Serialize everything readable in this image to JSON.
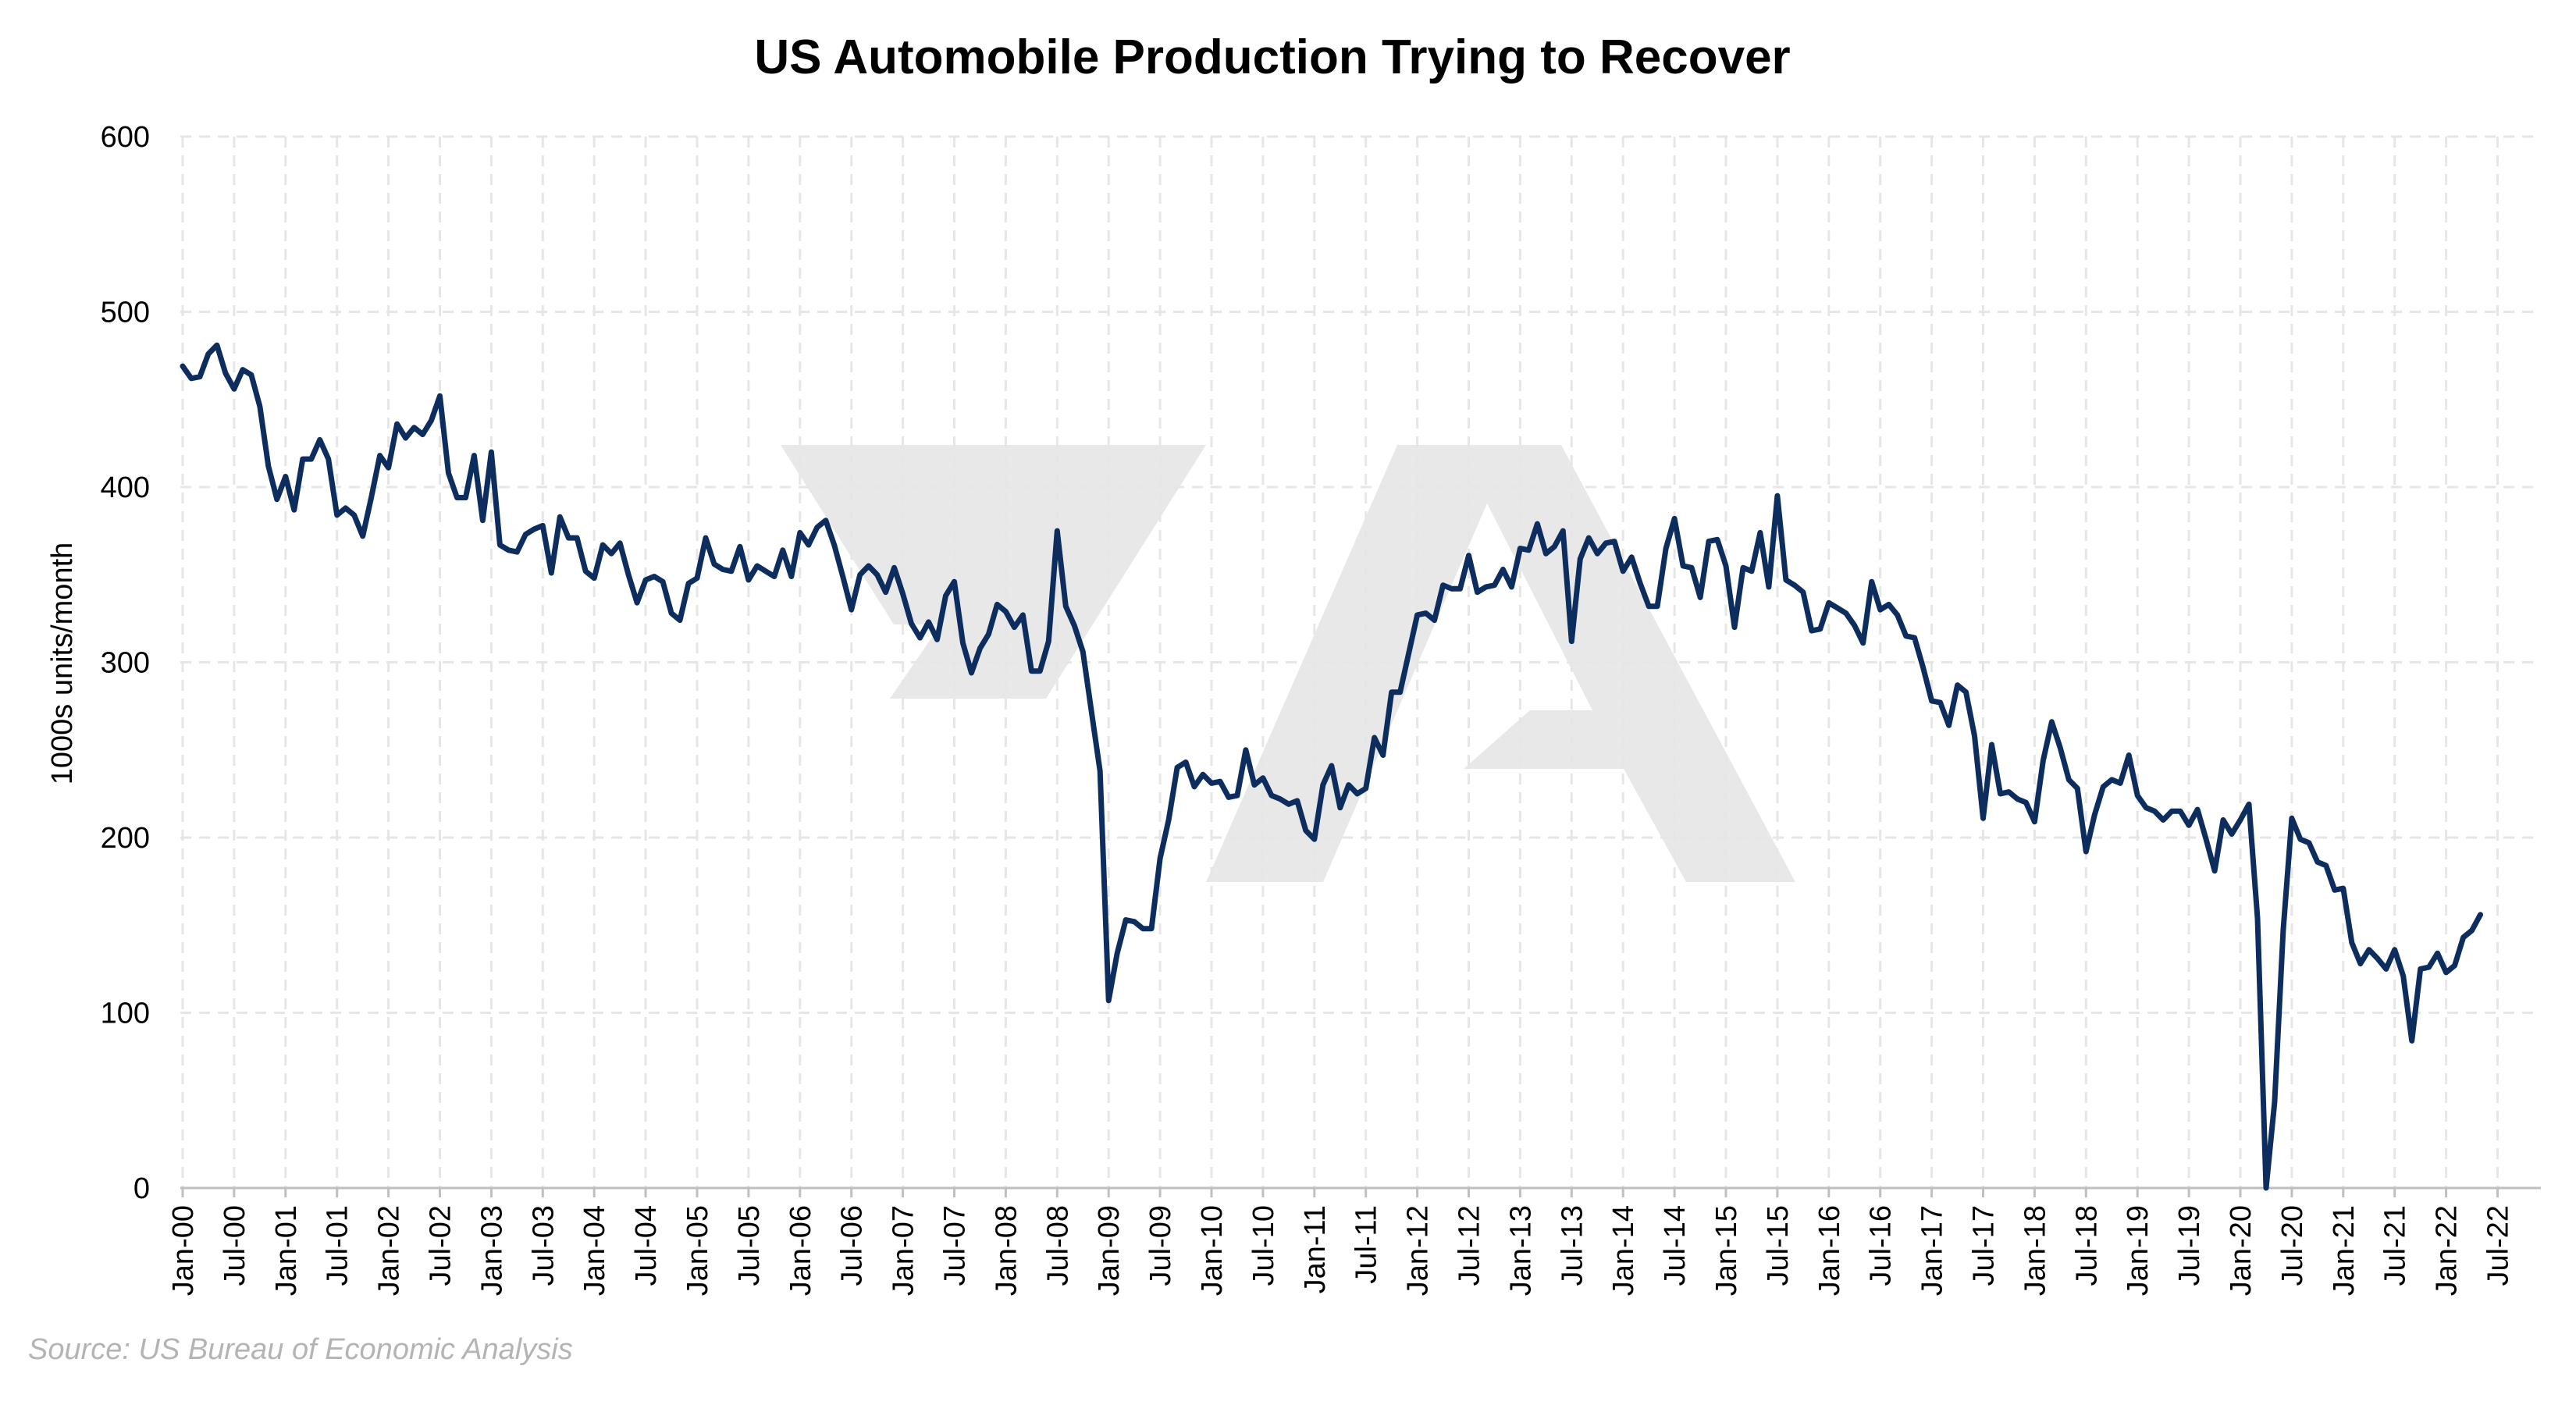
{
  "source": "Source: US Bureau of Economic Analysis",
  "colors": {
    "line": "#0c2d5e",
    "grid": "#e6e6e6",
    "watermark": "#e8e8e8"
  },
  "chart_data": {
    "type": "line",
    "title": "US Automobile Production Trying to Recover",
    "xlabel": "",
    "ylabel": "1000s units/month",
    "ylim": [
      0,
      600
    ],
    "yticks": [
      0,
      100,
      200,
      300,
      400,
      500,
      600
    ],
    "x_tick_labels": [
      "Jan-00",
      "Jul-00",
      "Jan-01",
      "Jul-01",
      "Jan-02",
      "Jul-02",
      "Jan-03",
      "Jul-03",
      "Jan-04",
      "Jul-04",
      "Jan-05",
      "Jul-05",
      "Jan-06",
      "Jul-06",
      "Jan-07",
      "Jul-07",
      "Jan-08",
      "Jul-08",
      "Jan-09",
      "Jul-09",
      "Jan-10",
      "Jul-10",
      "Jan-11",
      "Jul-11",
      "Jan-12",
      "Jul-12",
      "Jan-13",
      "Jul-13",
      "Jan-14",
      "Jul-14",
      "Jan-15",
      "Jul-15",
      "Jan-16",
      "Jul-16",
      "Jan-17",
      "Jul-17",
      "Jan-18",
      "Jul-18",
      "Jan-19",
      "Jul-19",
      "Jan-20",
      "Jul-20",
      "Jan-21",
      "Jul-21",
      "Jan-22",
      "Jul-22"
    ],
    "grid": true,
    "legend": "none",
    "series": [
      {
        "start": "Jan-00",
        "frequency": "monthly",
        "values": [
          469,
          462,
          463,
          476,
          481,
          465,
          456,
          467,
          464,
          446,
          412,
          393,
          406,
          387,
          416,
          416,
          427,
          416,
          384,
          388,
          384,
          372,
          394,
          418,
          411,
          436,
          428,
          434,
          430,
          438,
          452,
          408,
          394,
          394,
          418,
          381,
          420,
          367,
          364,
          363,
          373,
          376,
          378,
          351,
          383,
          371,
          371,
          352,
          348,
          367,
          362,
          368,
          350,
          334,
          347,
          349,
          346,
          328,
          324,
          345,
          348,
          371,
          356,
          353,
          352,
          366,
          347,
          355,
          352,
          349,
          364,
          349,
          374,
          367,
          377,
          381,
          367,
          349,
          330,
          350,
          355,
          350,
          340,
          354,
          339,
          322,
          314,
          323,
          313,
          338,
          346,
          311,
          294,
          308,
          316,
          333,
          329,
          320,
          327,
          295,
          295,
          312,
          375,
          332,
          321,
          306,
          272,
          238,
          107,
          134,
          153,
          152,
          148,
          148,
          188,
          210,
          240,
          243,
          229,
          236,
          231,
          232,
          223,
          224,
          250,
          230,
          234,
          224,
          222,
          219,
          221,
          204,
          199,
          230,
          241,
          217,
          230,
          225,
          228,
          257,
          247,
          283,
          283,
          305,
          327,
          328,
          324,
          344,
          342,
          342,
          361,
          340,
          343,
          344,
          353,
          343,
          365,
          364,
          379,
          362,
          366,
          375,
          312,
          359,
          371,
          362,
          368,
          369,
          352,
          360,
          345,
          332,
          332,
          365,
          382,
          355,
          354,
          337,
          369,
          370,
          355,
          320,
          354,
          352,
          374,
          343,
          395,
          347,
          344,
          340,
          318,
          319,
          334,
          331,
          328,
          321,
          311,
          346,
          330,
          333,
          327,
          315,
          314,
          297,
          278,
          277,
          264,
          287,
          283,
          258,
          211,
          253,
          225,
          226,
          222,
          220,
          209,
          244,
          266,
          251,
          233,
          228,
          192,
          213,
          229,
          233,
          231,
          247,
          224,
          217,
          215,
          210,
          215,
          215,
          207,
          216,
          199,
          181,
          210,
          202,
          210,
          219,
          154,
          0,
          49,
          147,
          211,
          199,
          197,
          186,
          184,
          170,
          171,
          140,
          128,
          136,
          131,
          125,
          136,
          121,
          84,
          125,
          126,
          134,
          123,
          127,
          143,
          147,
          156
        ]
      }
    ]
  }
}
